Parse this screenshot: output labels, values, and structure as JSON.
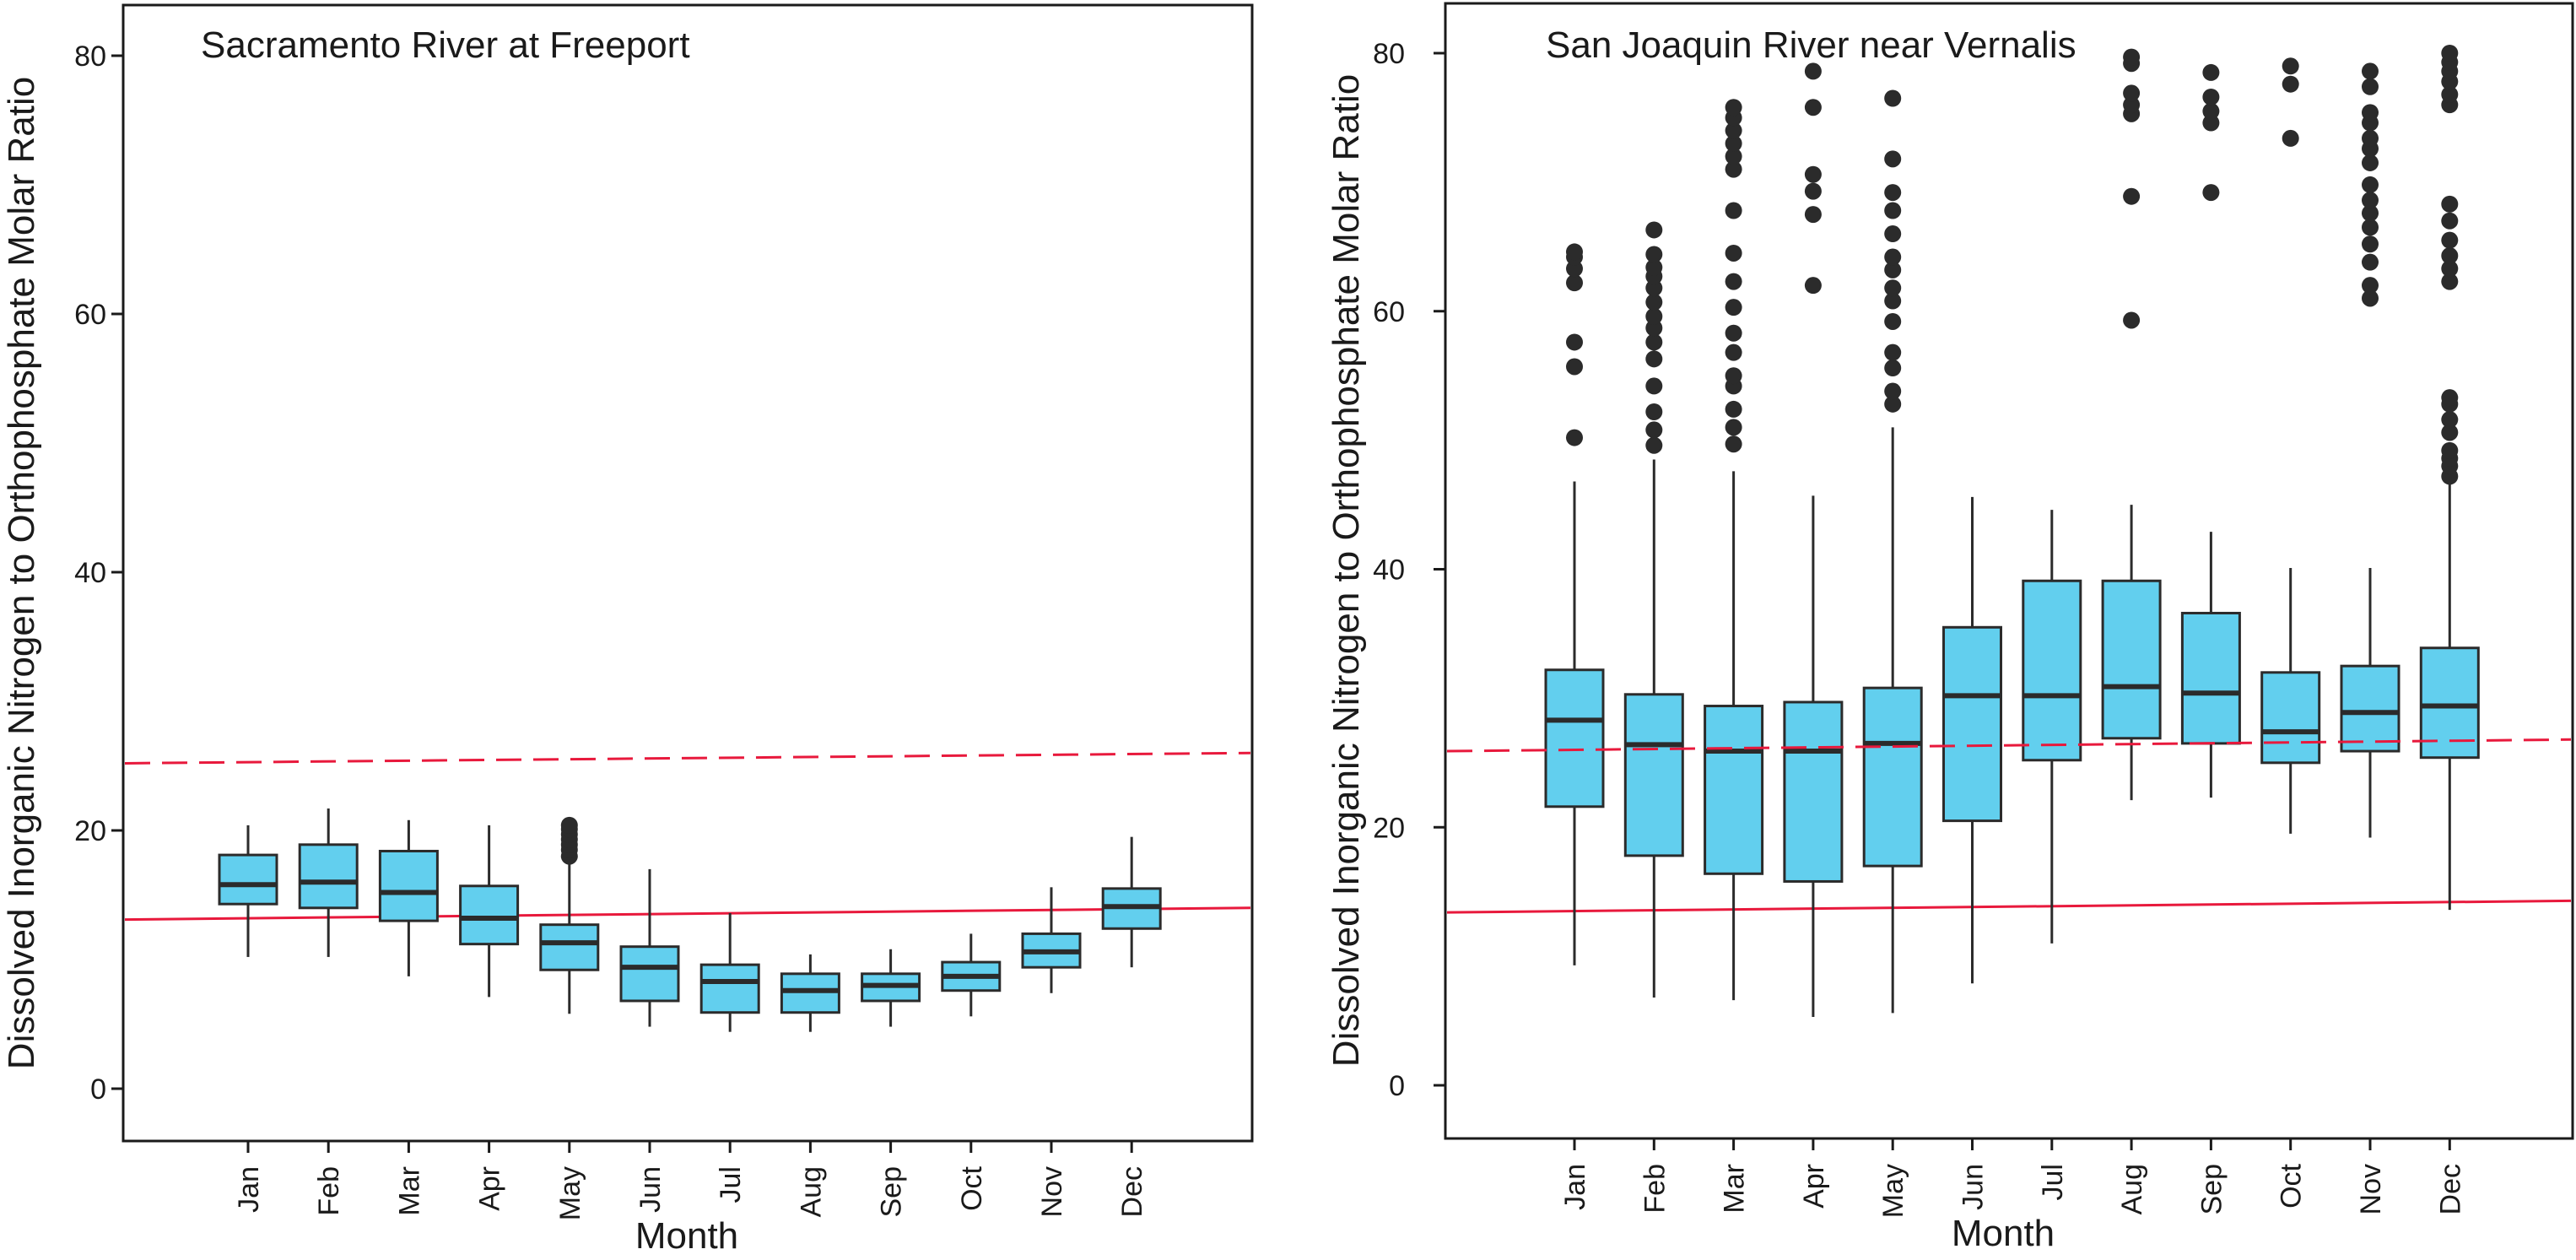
{
  "colors": {
    "box_fill": "#62cfee",
    "box_stroke": "#2b2b2b",
    "outlier": "#2b2b2b",
    "reference_line": "#e8193c",
    "frame": "#1a1a1a"
  },
  "chart_data": [
    {
      "type": "box",
      "title": "Sacramento River at Freeport",
      "xlabel": "Month",
      "ylabel": "Dissolved Inorganic Nitrogen to Orthophosphate Molar Ratio",
      "ylim": [
        -4,
        84
      ],
      "yticks": [
        0,
        20,
        40,
        60,
        80
      ],
      "categories": [
        "Jan",
        "Feb",
        "Mar",
        "Apr",
        "May",
        "Jun",
        "Jul",
        "Aug",
        "Sep",
        "Oct",
        "Nov",
        "Dec"
      ],
      "boxes": [
        {
          "whisker_low": 10.2,
          "q1": 14.3,
          "median": 15.8,
          "q3": 18.1,
          "whisker_high": 20.4,
          "outliers": []
        },
        {
          "whisker_low": 10.2,
          "q1": 14.0,
          "median": 16.0,
          "q3": 18.9,
          "whisker_high": 21.7,
          "outliers": []
        },
        {
          "whisker_low": 8.7,
          "q1": 13.0,
          "median": 15.2,
          "q3": 18.4,
          "whisker_high": 20.8,
          "outliers": []
        },
        {
          "whisker_low": 7.1,
          "q1": 11.2,
          "median": 13.2,
          "q3": 15.7,
          "whisker_high": 20.4,
          "outliers": []
        },
        {
          "whisker_low": 5.8,
          "q1": 9.2,
          "median": 11.3,
          "q3": 12.7,
          "whisker_high": 17.7,
          "outliers": [
            18.0,
            18.5,
            18.9,
            19.3,
            19.7,
            20.1,
            20.4
          ]
        },
        {
          "whisker_low": 4.8,
          "q1": 6.8,
          "median": 9.4,
          "q3": 11.0,
          "whisker_high": 17.0,
          "outliers": []
        },
        {
          "whisker_low": 4.4,
          "q1": 5.9,
          "median": 8.3,
          "q3": 9.6,
          "whisker_high": 13.6,
          "outliers": []
        },
        {
          "whisker_low": 4.4,
          "q1": 5.9,
          "median": 7.6,
          "q3": 8.9,
          "whisker_high": 10.4,
          "outliers": []
        },
        {
          "whisker_low": 4.8,
          "q1": 6.8,
          "median": 8.0,
          "q3": 8.9,
          "whisker_high": 10.8,
          "outliers": []
        },
        {
          "whisker_low": 5.6,
          "q1": 7.6,
          "median": 8.7,
          "q3": 9.8,
          "whisker_high": 12.0,
          "outliers": []
        },
        {
          "whisker_low": 7.4,
          "q1": 9.4,
          "median": 10.6,
          "q3": 12.0,
          "whisker_high": 15.6,
          "outliers": []
        },
        {
          "whisker_low": 9.4,
          "q1": 12.4,
          "median": 14.1,
          "q3": 15.5,
          "whisker_high": 19.5,
          "outliers": []
        }
      ],
      "reference_lines": [
        {
          "style": "solid",
          "y_start": 13.1,
          "y_end": 14.0
        },
        {
          "style": "dashed",
          "y_start": 25.2,
          "y_end": 26.0
        }
      ]
    },
    {
      "type": "box",
      "title": "San Joaquin River near Vernalis",
      "xlabel": "Month",
      "ylabel": "Dissolved Inorganic Nitrogen to Orthophosphate Molar Ratio",
      "ylim": [
        -4,
        84
      ],
      "yticks": [
        0,
        20,
        40,
        60,
        80
      ],
      "categories": [
        "Jan",
        "Feb",
        "Mar",
        "Apr",
        "May",
        "Jun",
        "Jul",
        "Aug",
        "Sep",
        "Oct",
        "Nov",
        "Dec"
      ],
      "boxes": [
        {
          "whisker_low": 9.3,
          "q1": 21.6,
          "median": 28.3,
          "q3": 32.2,
          "whisker_high": 46.8,
          "outliers": [
            50.2,
            55.7,
            57.6,
            62.2,
            63.3,
            64.2,
            64.6
          ]
        },
        {
          "whisker_low": 6.8,
          "q1": 17.8,
          "median": 26.4,
          "q3": 30.3,
          "whisker_high": 48.5,
          "outliers": [
            49.6,
            50.8,
            52.2,
            54.2,
            56.3,
            57.6,
            58.7,
            59.6,
            60.7,
            61.8,
            62.7,
            63.4,
            64.4,
            66.3
          ]
        },
        {
          "whisker_low": 6.6,
          "q1": 16.4,
          "median": 25.9,
          "q3": 29.4,
          "whisker_high": 47.6,
          "outliers": [
            49.7,
            51.0,
            52.4,
            54.2,
            55.0,
            56.8,
            58.3,
            60.3,
            62.3,
            64.5,
            67.8,
            71.0,
            72.0,
            73.0,
            74.0,
            75.0,
            75.8
          ]
        },
        {
          "whisker_low": 5.3,
          "q1": 15.8,
          "median": 25.9,
          "q3": 29.7,
          "whisker_high": 45.7,
          "outliers": [
            62.0,
            67.5,
            69.3,
            70.6,
            75.8,
            78.6
          ]
        },
        {
          "whisker_low": 5.6,
          "q1": 17.0,
          "median": 26.5,
          "q3": 30.8,
          "whisker_high": 51.0,
          "outliers": [
            52.8,
            53.8,
            55.6,
            56.8,
            59.2,
            60.8,
            61.8,
            63.2,
            64.2,
            66.0,
            67.8,
            69.2,
            71.8,
            76.5
          ]
        },
        {
          "whisker_low": 7.9,
          "q1": 20.5,
          "median": 30.2,
          "q3": 35.5,
          "whisker_high": 45.6,
          "outliers": []
        },
        {
          "whisker_low": 11.0,
          "q1": 25.2,
          "median": 30.2,
          "q3": 39.1,
          "whisker_high": 44.6,
          "outliers": []
        },
        {
          "whisker_low": 22.1,
          "q1": 26.9,
          "median": 30.9,
          "q3": 39.1,
          "whisker_high": 45.0,
          "outliers": [
            59.3,
            68.9,
            75.3,
            76.0,
            76.9,
            79.2,
            79.7
          ]
        },
        {
          "whisker_low": 22.3,
          "q1": 26.5,
          "median": 30.4,
          "q3": 36.6,
          "whisker_high": 42.9,
          "outliers": [
            69.2,
            74.6,
            75.5,
            76.6,
            78.5
          ]
        },
        {
          "whisker_low": 19.5,
          "q1": 25.0,
          "median": 27.4,
          "q3": 32.0,
          "whisker_high": 40.1,
          "outliers": [
            73.4,
            77.6,
            79.0
          ]
        },
        {
          "whisker_low": 19.2,
          "q1": 25.9,
          "median": 28.9,
          "q3": 32.5,
          "whisker_high": 40.1,
          "outliers": [
            61.0,
            62.0,
            63.8,
            65.2,
            66.5,
            67.6,
            68.6,
            69.8,
            71.5,
            72.6,
            73.4,
            74.6,
            75.4,
            77.4,
            78.6
          ]
        },
        {
          "whisker_low": 13.6,
          "q1": 25.4,
          "median": 29.4,
          "q3": 33.9,
          "whisker_high": 46.7,
          "outliers": [
            47.2,
            48.0,
            48.6,
            49.2,
            50.6,
            51.6,
            52.8,
            53.3,
            62.3,
            63.3,
            64.3,
            65.5,
            67.0,
            68.3,
            76.0,
            76.8,
            77.8,
            78.6,
            79.3,
            80.0
          ]
        }
      ],
      "reference_lines": [
        {
          "style": "solid",
          "y_start": 13.4,
          "y_end": 14.3
        },
        {
          "style": "dashed",
          "y_start": 25.9,
          "y_end": 26.8
        }
      ]
    }
  ]
}
